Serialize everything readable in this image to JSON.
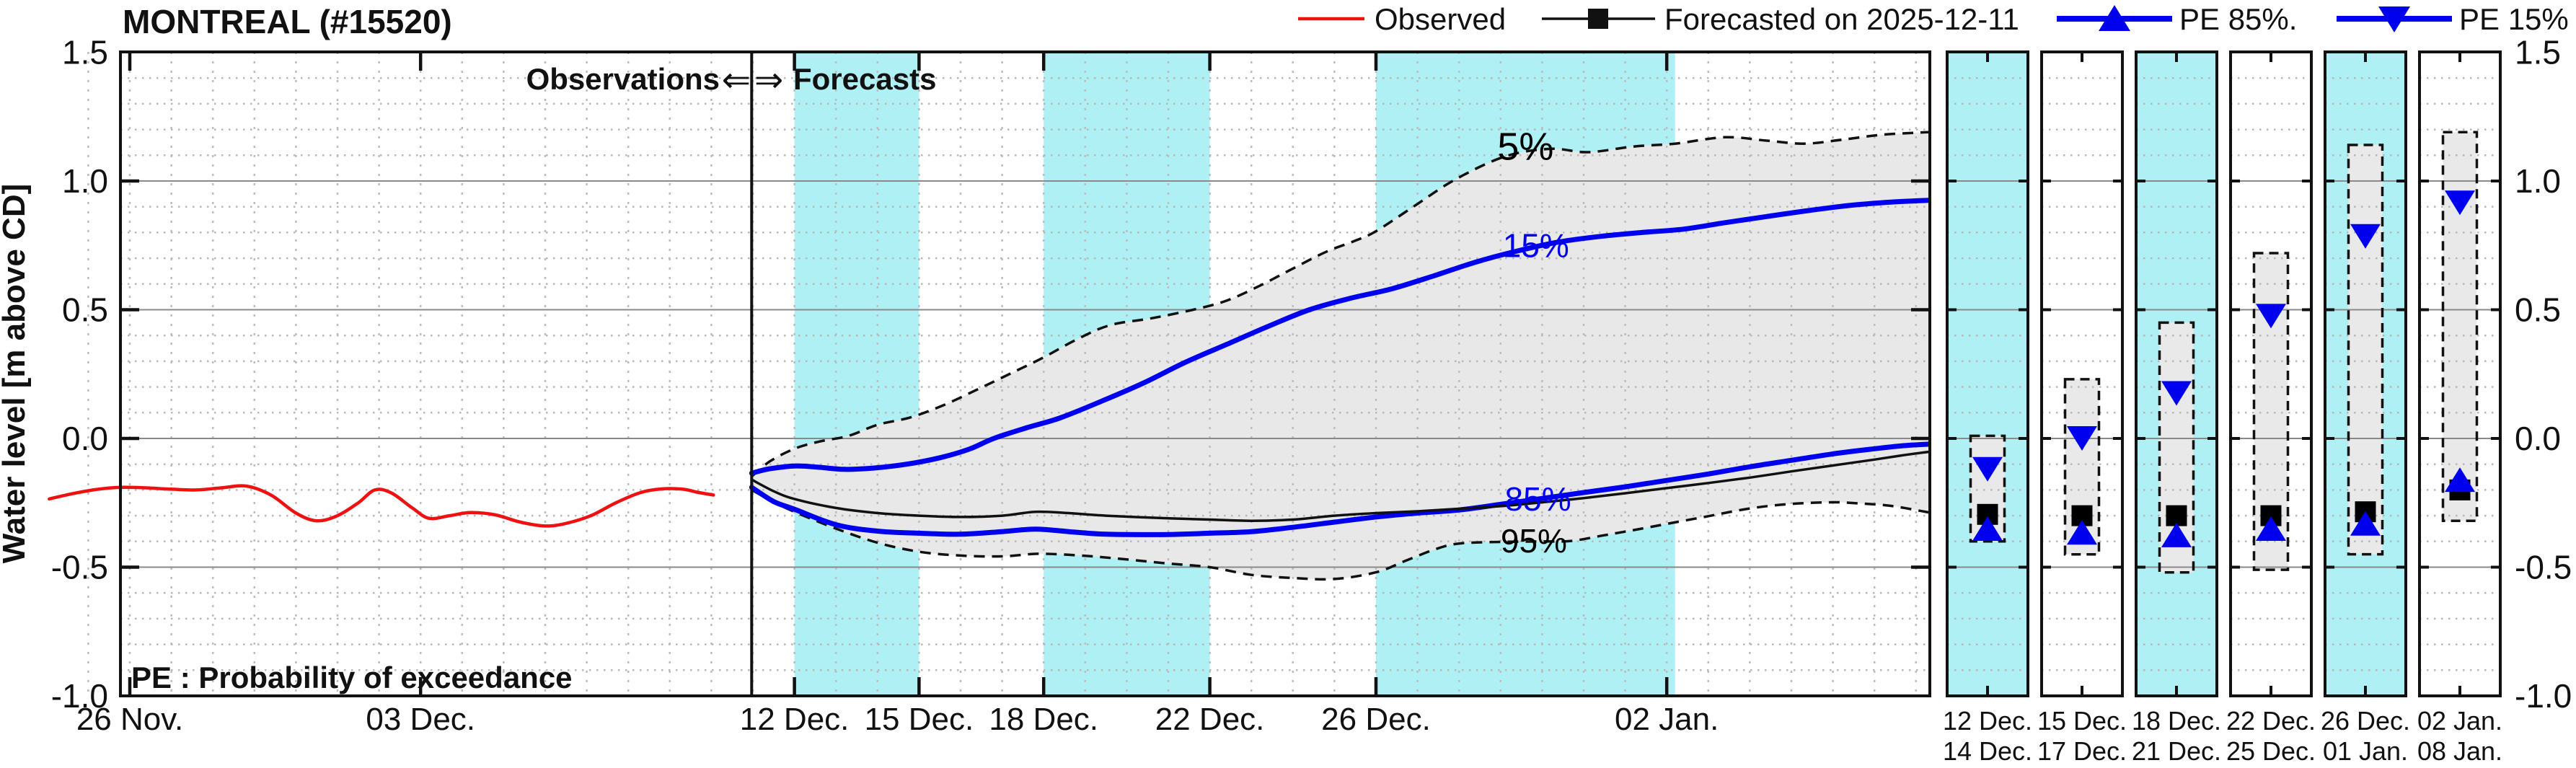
{
  "header": {
    "title": "MONTREAL (#15520)"
  },
  "legend": {
    "items": [
      {
        "label": "Observed",
        "series": "observed",
        "color": "#ee1111",
        "marker": "none"
      },
      {
        "label": "Forecasted on 2025-12-11",
        "series": "forecast-median",
        "color": "#111111",
        "marker": "square"
      },
      {
        "label": "PE 85%.",
        "series": "pe85",
        "color": "#0000ee",
        "marker": "triangle-up"
      },
      {
        "label": "PE 15%",
        "series": "pe15",
        "color": "#0000ee",
        "marker": "triangle-down"
      }
    ]
  },
  "labels": {
    "observations": "Observations",
    "forecasts": "Forecasts",
    "arrow_left": "⇐",
    "arrow_right": "⇒",
    "pe_note": "PE : Probability of exceedance",
    "y_axis": "Water level [m above CD]"
  },
  "colors": {
    "band": "#aff0f5",
    "envelope": "#e8e8e8",
    "blue": "#0000ee",
    "red": "#ee1111",
    "line_black": "#111111",
    "grid_major": "#8a8a8a",
    "grid_minor": "#b8b8b8",
    "grid_day": "#bdbdbd"
  },
  "chart_data": {
    "type": "line",
    "title": "MONTREAL (#15520)",
    "ylabel": "Water level [m above CD]",
    "ylim": [
      -1.0,
      1.5
    ],
    "y_major_values": [
      1.0,
      0.5,
      0.0,
      -0.5
    ],
    "y_axis_tick_labels": [
      "1.5",
      "1.0",
      "0.5",
      "0.0",
      "-0.5",
      "-1.0"
    ],
    "y_axis_tick_values": [
      1.5,
      1.0,
      0.5,
      0.0,
      -0.5,
      -1.0
    ],
    "y_minor_step": 0.1,
    "x_unit": "days after 26 Nov",
    "xlim_days": [
      -1.95,
      43.35
    ],
    "x_ticks": [
      {
        "day": 0,
        "label": "26 Nov."
      },
      {
        "day": 7,
        "label": "03 Dec."
      },
      {
        "day": 16,
        "label": "12 Dec."
      },
      {
        "day": 19,
        "label": "15 Dec."
      },
      {
        "day": 22,
        "label": "18 Dec."
      },
      {
        "day": 26,
        "label": "22 Dec."
      },
      {
        "day": 30,
        "label": "26 Dec."
      },
      {
        "day": 37,
        "label": "02 Jan."
      }
    ],
    "forecast_start_day": 14.97,
    "shaded_day_bands": [
      [
        16,
        19
      ],
      [
        22,
        26
      ],
      [
        30,
        37.2
      ]
    ],
    "grid": true,
    "legend_position": "top-right",
    "series": [
      {
        "name": "observed",
        "style": "solid",
        "color": "#ee1111",
        "width": 4.5,
        "points": [
          [
            -1.94,
            -0.235
          ],
          [
            -1.4,
            -0.215
          ],
          [
            -0.8,
            -0.198
          ],
          [
            -0.2,
            -0.19
          ],
          [
            0.4,
            -0.192
          ],
          [
            1.0,
            -0.197
          ],
          [
            1.6,
            -0.2
          ],
          [
            2.2,
            -0.192
          ],
          [
            2.8,
            -0.185
          ],
          [
            3.4,
            -0.22
          ],
          [
            4.0,
            -0.29
          ],
          [
            4.5,
            -0.32
          ],
          [
            5.0,
            -0.3
          ],
          [
            5.5,
            -0.25
          ],
          [
            5.9,
            -0.2
          ],
          [
            6.3,
            -0.212
          ],
          [
            6.8,
            -0.27
          ],
          [
            7.2,
            -0.31
          ],
          [
            7.7,
            -0.3
          ],
          [
            8.2,
            -0.288
          ],
          [
            8.8,
            -0.297
          ],
          [
            9.4,
            -0.325
          ],
          [
            10.0,
            -0.34
          ],
          [
            10.5,
            -0.33
          ],
          [
            11.1,
            -0.3
          ],
          [
            11.7,
            -0.25
          ],
          [
            12.3,
            -0.21
          ],
          [
            12.8,
            -0.196
          ],
          [
            13.3,
            -0.197
          ],
          [
            13.7,
            -0.21
          ],
          [
            14.05,
            -0.22
          ]
        ]
      },
      {
        "name": "forecast-median",
        "style": "solid",
        "color": "#111111",
        "width": 3.5,
        "points": [
          [
            14.97,
            -0.16
          ],
          [
            15.5,
            -0.205
          ],
          [
            16,
            -0.235
          ],
          [
            17,
            -0.27
          ],
          [
            18,
            -0.29
          ],
          [
            19,
            -0.3
          ],
          [
            20,
            -0.305
          ],
          [
            21,
            -0.3
          ],
          [
            21.8,
            -0.285
          ],
          [
            22.6,
            -0.29
          ],
          [
            23.5,
            -0.3
          ],
          [
            25,
            -0.31
          ],
          [
            26,
            -0.315
          ],
          [
            27,
            -0.32
          ],
          [
            28,
            -0.315
          ],
          [
            29,
            -0.3
          ],
          [
            30,
            -0.29
          ],
          [
            31,
            -0.283
          ],
          [
            32,
            -0.273
          ],
          [
            33,
            -0.263
          ],
          [
            34,
            -0.248
          ],
          [
            35,
            -0.232
          ],
          [
            36,
            -0.213
          ],
          [
            37,
            -0.193
          ],
          [
            38,
            -0.173
          ],
          [
            39,
            -0.152
          ],
          [
            40,
            -0.128
          ],
          [
            41,
            -0.105
          ],
          [
            42,
            -0.082
          ],
          [
            42.7,
            -0.065
          ],
          [
            43.3,
            -0.052
          ]
        ]
      },
      {
        "name": "pe15",
        "style": "solid",
        "color": "#0000ee",
        "width": 7,
        "points": [
          [
            14.97,
            -0.135
          ],
          [
            15.4,
            -0.118
          ],
          [
            16,
            -0.107
          ],
          [
            16.6,
            -0.112
          ],
          [
            17.2,
            -0.12
          ],
          [
            17.9,
            -0.115
          ],
          [
            18.7,
            -0.1
          ],
          [
            19.5,
            -0.075
          ],
          [
            20.2,
            -0.042
          ],
          [
            20.8,
            0.0
          ],
          [
            21.6,
            0.042
          ],
          [
            22.4,
            0.08
          ],
          [
            23.4,
            0.145
          ],
          [
            24.4,
            0.215
          ],
          [
            25.4,
            0.295
          ],
          [
            26.4,
            0.365
          ],
          [
            27.4,
            0.435
          ],
          [
            28.4,
            0.5
          ],
          [
            29.4,
            0.545
          ],
          [
            30.4,
            0.582
          ],
          [
            31.4,
            0.632
          ],
          [
            32.4,
            0.685
          ],
          [
            33.4,
            0.728
          ],
          [
            34.4,
            0.763
          ],
          [
            35.4,
            0.785
          ],
          [
            36.4,
            0.8
          ],
          [
            37.4,
            0.813
          ],
          [
            38.4,
            0.838
          ],
          [
            39.4,
            0.862
          ],
          [
            40.4,
            0.885
          ],
          [
            41.4,
            0.905
          ],
          [
            42.4,
            0.918
          ],
          [
            43.3,
            0.925
          ]
        ]
      },
      {
        "name": "pe85",
        "style": "solid",
        "color": "#0000ee",
        "width": 7,
        "points": [
          [
            14.97,
            -0.19
          ],
          [
            15.5,
            -0.245
          ],
          [
            16,
            -0.275
          ],
          [
            17,
            -0.335
          ],
          [
            18,
            -0.36
          ],
          [
            19,
            -0.368
          ],
          [
            20,
            -0.372
          ],
          [
            21,
            -0.362
          ],
          [
            21.8,
            -0.352
          ],
          [
            22.6,
            -0.362
          ],
          [
            23.5,
            -0.372
          ],
          [
            25,
            -0.373
          ],
          [
            26,
            -0.368
          ],
          [
            27,
            -0.362
          ],
          [
            28,
            -0.345
          ],
          [
            29,
            -0.325
          ],
          [
            30,
            -0.305
          ],
          [
            31,
            -0.29
          ],
          [
            32,
            -0.278
          ],
          [
            33,
            -0.256
          ],
          [
            34,
            -0.233
          ],
          [
            35,
            -0.21
          ],
          [
            36,
            -0.188
          ],
          [
            37,
            -0.163
          ],
          [
            38,
            -0.138
          ],
          [
            39,
            -0.11
          ],
          [
            40,
            -0.085
          ],
          [
            41,
            -0.06
          ],
          [
            42,
            -0.04
          ],
          [
            42.7,
            -0.028
          ],
          [
            43.3,
            -0.022
          ]
        ]
      },
      {
        "name": "pe5",
        "style": "dashed",
        "color": "#111111",
        "width": 3.5,
        "points": [
          [
            14.97,
            -0.148
          ],
          [
            15.4,
            -0.09
          ],
          [
            16,
            -0.04
          ],
          [
            16.6,
            -0.012
          ],
          [
            17.3,
            0.01
          ],
          [
            18,
            0.053
          ],
          [
            18.8,
            0.082
          ],
          [
            19.6,
            0.13
          ],
          [
            20.4,
            0.19
          ],
          [
            21.2,
            0.252
          ],
          [
            22,
            0.315
          ],
          [
            22.8,
            0.385
          ],
          [
            23.6,
            0.44
          ],
          [
            24.6,
            0.467
          ],
          [
            25.6,
            0.5
          ],
          [
            26.4,
            0.535
          ],
          [
            27.2,
            0.593
          ],
          [
            28,
            0.66
          ],
          [
            28.8,
            0.725
          ],
          [
            29.5,
            0.768
          ],
          [
            30,
            0.805
          ],
          [
            30.9,
            0.9
          ],
          [
            31.9,
            1.005
          ],
          [
            33.1,
            1.095
          ],
          [
            34.2,
            1.125
          ],
          [
            35.1,
            1.112
          ],
          [
            36.2,
            1.134
          ],
          [
            37.2,
            1.145
          ],
          [
            38.4,
            1.17
          ],
          [
            39.4,
            1.157
          ],
          [
            40.3,
            1.145
          ],
          [
            41.2,
            1.16
          ],
          [
            42.2,
            1.18
          ],
          [
            43.3,
            1.19
          ]
        ]
      },
      {
        "name": "pe95",
        "style": "dashed",
        "color": "#111111",
        "width": 3.5,
        "points": [
          [
            14.97,
            -0.2
          ],
          [
            15.5,
            -0.247
          ],
          [
            16,
            -0.285
          ],
          [
            17,
            -0.35
          ],
          [
            18,
            -0.405
          ],
          [
            19,
            -0.44
          ],
          [
            20,
            -0.455
          ],
          [
            21,
            -0.458
          ],
          [
            21.9,
            -0.448
          ],
          [
            23,
            -0.456
          ],
          [
            24,
            -0.47
          ],
          [
            25,
            -0.486
          ],
          [
            26,
            -0.5
          ],
          [
            27,
            -0.53
          ],
          [
            28,
            -0.542
          ],
          [
            29,
            -0.546
          ],
          [
            30,
            -0.52
          ],
          [
            30.7,
            -0.476
          ],
          [
            31.4,
            -0.432
          ],
          [
            32,
            -0.408
          ],
          [
            33,
            -0.402
          ],
          [
            34,
            -0.4
          ],
          [
            34.7,
            -0.398
          ],
          [
            35.5,
            -0.376
          ],
          [
            36.2,
            -0.356
          ],
          [
            37,
            -0.332
          ],
          [
            38,
            -0.302
          ],
          [
            39,
            -0.272
          ],
          [
            40,
            -0.254
          ],
          [
            41,
            -0.248
          ],
          [
            41.6,
            -0.252
          ],
          [
            42.4,
            -0.262
          ],
          [
            43.3,
            -0.287
          ]
        ]
      }
    ],
    "envelope_between": [
      "pe5",
      "pe95"
    ],
    "curve_labels": [
      {
        "text": "5%",
        "color": "#000000",
        "day": 33.6,
        "value": 1.128,
        "size": 54
      },
      {
        "text": "15%",
        "color": "#0000ee",
        "day": 33.85,
        "value": 0.75,
        "size": 46
      },
      {
        "text": "85%",
        "color": "#0000ee",
        "day": 33.9,
        "value": -0.235,
        "size": 46
      },
      {
        "text": "95%",
        "color": "#000000",
        "day": 33.8,
        "value": -0.398,
        "size": 46
      }
    ],
    "panels": [
      {
        "period_start": "12 Dec.",
        "period_end": "14 Dec.",
        "shaded": true,
        "box_low": -0.4,
        "box_high": 0.01,
        "pe15": -0.12,
        "median": -0.295,
        "pe85": -0.35
      },
      {
        "period_start": "15 Dec.",
        "period_end": "17 Dec.",
        "shaded": false,
        "box_low": -0.45,
        "box_high": 0.23,
        "pe15": 0.0,
        "median": -0.3,
        "pe85": -0.365
      },
      {
        "period_start": "18 Dec.",
        "period_end": "21 Dec.",
        "shaded": true,
        "box_low": -0.52,
        "box_high": 0.45,
        "pe15": 0.175,
        "median": -0.3,
        "pe85": -0.375
      },
      {
        "period_start": "22 Dec.",
        "period_end": "25 Dec.",
        "shaded": false,
        "box_low": -0.51,
        "box_high": 0.72,
        "pe15": 0.475,
        "median": -0.3,
        "pe85": -0.35
      },
      {
        "period_start": "26 Dec.",
        "period_end": "01 Jan.",
        "shaded": true,
        "box_low": -0.45,
        "box_high": 1.14,
        "pe15": 0.785,
        "median": -0.285,
        "pe85": -0.33
      },
      {
        "period_start": "02 Jan.",
        "period_end": "08 Jan.",
        "shaded": false,
        "box_low": -0.32,
        "box_high": 1.19,
        "pe15": 0.915,
        "median": -0.2,
        "pe85": -0.16
      }
    ]
  }
}
